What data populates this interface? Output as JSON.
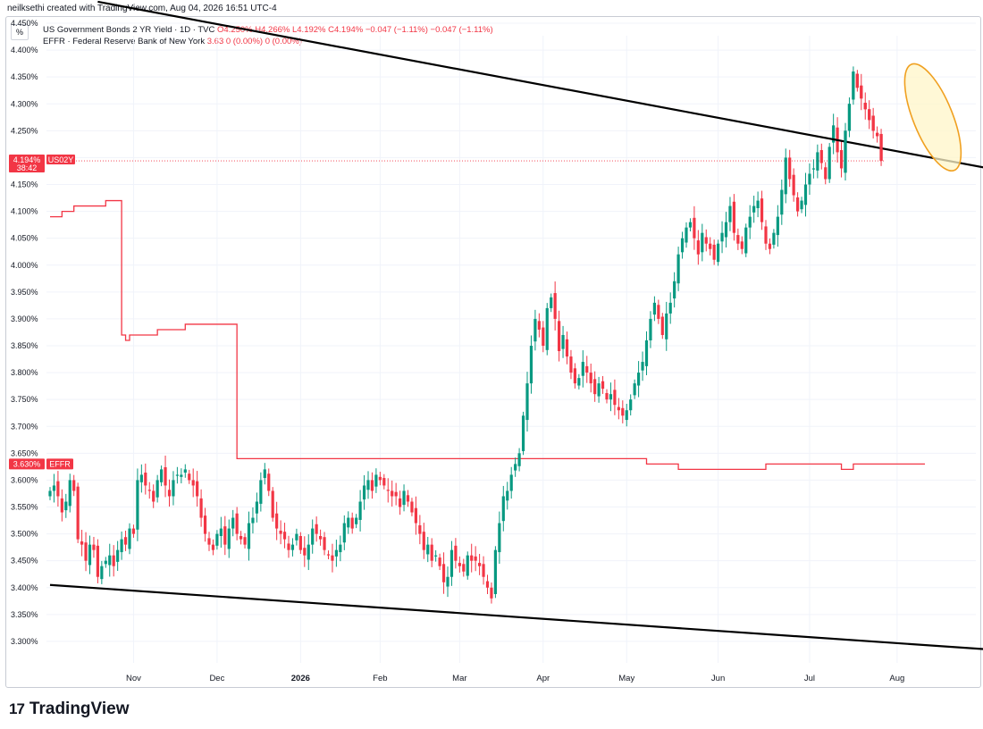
{
  "header": {
    "credit": "neilksethi created with TradingView.com, Aug 04, 2026 16:51 UTC-4",
    "percent_button": "%",
    "brand": "TradingView",
    "brand_logo": "17"
  },
  "legend": {
    "series1_name": "US Government Bonds 2 YR Yield · 1D · TVC",
    "series1_values": "O4.250%  H4.266%  L4.192%  C4.194%  −0.047 (−1.11%)  −0.047 (−1.11%)",
    "series2_name": "EFFR · Federal Reserve Bank of New York",
    "series2_values": "3.63  0 (0.00%)  0 (0.00%)"
  },
  "badges": {
    "us02y_value": "4.194%",
    "us02y_timer": "38:42",
    "us02y_label": "US02Y",
    "effr_value": "3.630%",
    "effr_label": "EFFR"
  },
  "colors": {
    "up": "#089981",
    "down": "#f23645",
    "effr_line": "#f23645",
    "trendline": "#000000",
    "highlight_stroke": "#f0a020",
    "highlight_fill": "#fff5c8"
  },
  "chart_data": {
    "type": "candlestick",
    "y_unit": "%",
    "ylim": [
      3.26,
      4.46
    ],
    "y_ticks": [
      "3.300%",
      "3.350%",
      "3.400%",
      "3.450%",
      "3.500%",
      "3.550%",
      "3.600%",
      "3.650%",
      "3.700%",
      "3.750%",
      "3.800%",
      "3.850%",
      "3.900%",
      "3.950%",
      "4.000%",
      "4.050%",
      "4.100%",
      "4.150%",
      "4.200%",
      "4.250%",
      "4.300%",
      "4.350%",
      "4.400%",
      "4.450%"
    ],
    "x_ticks": [
      {
        "label": "Nov",
        "index": 21
      },
      {
        "label": "Dec",
        "index": 42
      },
      {
        "label": "2026",
        "index": 63
      },
      {
        "label": "Feb",
        "index": 83
      },
      {
        "label": "Mar",
        "index": 103
      },
      {
        "label": "Apr",
        "index": 124
      },
      {
        "label": "May",
        "index": 145
      },
      {
        "label": "Jun",
        "index": 168
      },
      {
        "label": "Jul",
        "index": 191
      },
      {
        "label": "Aug",
        "index": 213
      }
    ],
    "grid": true,
    "series": [
      {
        "name": "US Government Bonds 2 YR Yield",
        "type": "candlestick",
        "close": [
          3.58,
          3.59,
          3.57,
          3.54,
          3.56,
          3.6,
          3.58,
          3.49,
          3.48,
          3.45,
          3.48,
          3.47,
          3.42,
          3.44,
          3.45,
          3.46,
          3.44,
          3.47,
          3.49,
          3.48,
          3.51,
          3.5,
          3.6,
          3.61,
          3.59,
          3.58,
          3.56,
          3.6,
          3.62,
          3.59,
          3.57,
          3.6,
          3.61,
          3.61,
          3.62,
          3.6,
          3.59,
          3.57,
          3.53,
          3.5,
          3.48,
          3.47,
          3.5,
          3.51,
          3.48,
          3.51,
          3.53,
          3.5,
          3.49,
          3.48,
          3.52,
          3.53,
          3.56,
          3.6,
          3.62,
          3.58,
          3.53,
          3.51,
          3.5,
          3.49,
          3.47,
          3.48,
          3.5,
          3.47,
          3.46,
          3.48,
          3.51,
          3.5,
          3.49,
          3.47,
          3.46,
          3.45,
          3.47,
          3.48,
          3.52,
          3.53,
          3.51,
          3.53,
          3.56,
          3.59,
          3.6,
          3.58,
          3.61,
          3.6,
          3.59,
          3.58,
          3.57,
          3.57,
          3.55,
          3.58,
          3.56,
          3.54,
          3.52,
          3.5,
          3.47,
          3.48,
          3.45,
          3.46,
          3.44,
          3.41,
          3.42,
          3.47,
          3.45,
          3.44,
          3.43,
          3.46,
          3.45,
          3.45,
          3.44,
          3.42,
          3.4,
          3.38,
          3.47,
          3.52,
          3.57,
          3.58,
          3.61,
          3.63,
          3.65,
          3.72,
          3.78,
          3.85,
          3.9,
          3.88,
          3.85,
          3.92,
          3.94,
          3.9,
          3.84,
          3.87,
          3.83,
          3.8,
          3.78,
          3.79,
          3.82,
          3.8,
          3.78,
          3.76,
          3.78,
          3.77,
          3.75,
          3.76,
          3.74,
          3.73,
          3.72,
          3.73,
          3.75,
          3.78,
          3.8,
          3.82,
          3.86,
          3.9,
          3.93,
          3.9,
          3.87,
          3.91,
          3.93,
          3.97,
          4.02,
          4.05,
          4.07,
          4.08,
          4.05,
          4.02,
          4.06,
          4.04,
          4.03,
          4.01,
          4.04,
          4.06,
          4.08,
          4.11,
          4.06,
          4.04,
          4.03,
          4.07,
          4.09,
          4.11,
          4.12,
          4.08,
          4.04,
          4.03,
          4.06,
          4.09,
          4.14,
          4.2,
          4.16,
          4.13,
          4.1,
          4.12,
          4.15,
          4.17,
          4.18,
          4.21,
          4.19,
          4.16,
          4.22,
          4.26,
          4.21,
          4.18,
          4.25,
          4.3,
          4.36,
          4.33,
          4.31,
          4.29,
          4.27,
          4.25,
          4.24,
          4.194
        ]
      },
      {
        "name": "EFFR",
        "type": "line",
        "values": [
          4.09,
          4.09,
          4.09,
          4.1,
          4.1,
          4.1,
          4.11,
          4.11,
          4.11,
          4.11,
          4.11,
          4.11,
          4.11,
          4.11,
          4.12,
          4.12,
          4.12,
          4.12,
          3.87,
          3.86,
          3.87,
          3.87,
          3.87,
          3.87,
          3.87,
          3.87,
          3.87,
          3.88,
          3.88,
          3.88,
          3.88,
          3.88,
          3.88,
          3.88,
          3.89,
          3.89,
          3.89,
          3.89,
          3.89,
          3.89,
          3.89,
          3.89,
          3.89,
          3.89,
          3.89,
          3.89,
          3.89,
          3.64,
          3.64,
          3.64,
          3.64,
          3.64,
          3.64,
          3.64,
          3.64,
          3.64,
          3.64,
          3.64,
          3.64,
          3.64,
          3.64,
          3.64,
          3.64,
          3.64,
          3.64,
          3.64,
          3.64,
          3.64,
          3.64,
          3.64,
          3.64,
          3.64,
          3.64,
          3.64,
          3.64,
          3.64,
          3.64,
          3.64,
          3.64,
          3.64,
          3.64,
          3.64,
          3.64,
          3.64,
          3.64,
          3.64,
          3.64,
          3.64,
          3.64,
          3.64,
          3.64,
          3.64,
          3.64,
          3.64,
          3.64,
          3.64,
          3.64,
          3.64,
          3.64,
          3.64,
          3.64,
          3.64,
          3.64,
          3.64,
          3.64,
          3.64,
          3.64,
          3.64,
          3.64,
          3.64,
          3.64,
          3.64,
          3.64,
          3.64,
          3.64,
          3.64,
          3.64,
          3.64,
          3.64,
          3.64,
          3.64,
          3.64,
          3.64,
          3.64,
          3.64,
          3.64,
          3.64,
          3.64,
          3.64,
          3.64,
          3.64,
          3.64,
          3.64,
          3.64,
          3.64,
          3.64,
          3.64,
          3.64,
          3.64,
          3.64,
          3.64,
          3.64,
          3.64,
          3.64,
          3.64,
          3.64,
          3.64,
          3.64,
          3.64,
          3.64,
          3.63,
          3.63,
          3.63,
          3.63,
          3.63,
          3.63,
          3.63,
          3.63,
          3.62,
          3.62,
          3.62,
          3.62,
          3.62,
          3.62,
          3.62,
          3.62,
          3.62,
          3.62,
          3.62,
          3.62,
          3.62,
          3.62,
          3.62,
          3.62,
          3.62,
          3.62,
          3.62,
          3.62,
          3.62,
          3.62,
          3.63,
          3.63,
          3.63,
          3.63,
          3.63,
          3.63,
          3.63,
          3.63,
          3.63,
          3.63,
          3.63,
          3.63,
          3.63,
          3.63,
          3.63,
          3.63,
          3.63,
          3.63,
          3.63,
          3.62,
          3.62,
          3.62,
          3.63,
          3.63,
          3.63,
          3.63,
          3.63,
          3.63,
          3.63,
          3.63,
          3.63,
          3.63,
          3.63,
          3.63,
          3.63,
          3.63,
          3.63,
          3.63,
          3.63,
          3.63
        ]
      }
    ],
    "trendlines": [
      {
        "name": "upper-trendline",
        "from": {
          "index": 12,
          "value": 4.49
        },
        "to": {
          "index": 236,
          "value": 4.18
        }
      },
      {
        "name": "lower-trendline",
        "from": {
          "index": 0,
          "value": 3.405
        },
        "to": {
          "index": 236,
          "value": 3.285
        }
      }
    ],
    "annotations": [
      {
        "type": "ellipse",
        "center": {
          "index": 222,
          "value": 4.275
        },
        "note": "highlight"
      }
    ]
  }
}
